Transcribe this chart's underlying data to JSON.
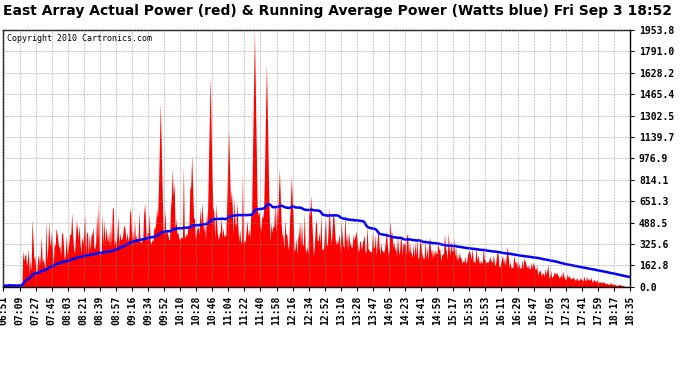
{
  "title": "East Array Actual Power (red) & Running Average Power (Watts blue) Fri Sep 3 18:52",
  "copyright": "Copyright 2010 Cartronics.com",
  "yticks": [
    0.0,
    162.8,
    325.6,
    488.5,
    651.3,
    814.1,
    976.9,
    1139.7,
    1302.5,
    1465.4,
    1628.2,
    1791.0,
    1953.8
  ],
  "ymax": 1953.8,
  "ymin": 0.0,
  "xtick_labels": [
    "06:51",
    "07:09",
    "07:27",
    "07:45",
    "08:03",
    "08:21",
    "08:39",
    "08:57",
    "09:16",
    "09:34",
    "09:52",
    "10:10",
    "10:28",
    "10:46",
    "11:04",
    "11:22",
    "11:40",
    "11:58",
    "12:16",
    "12:34",
    "12:52",
    "13:10",
    "13:28",
    "13:47",
    "14:05",
    "14:23",
    "14:41",
    "14:59",
    "15:17",
    "15:35",
    "15:53",
    "16:11",
    "16:29",
    "16:47",
    "17:05",
    "17:23",
    "17:41",
    "17:59",
    "18:17",
    "18:35"
  ],
  "background_color": "#ffffff",
  "fill_color": "#ff0000",
  "line_color": "#0000ff",
  "grid_color": "#888888",
  "title_fontsize": 10,
  "tick_fontsize": 7,
  "copyright_fontsize": 6
}
